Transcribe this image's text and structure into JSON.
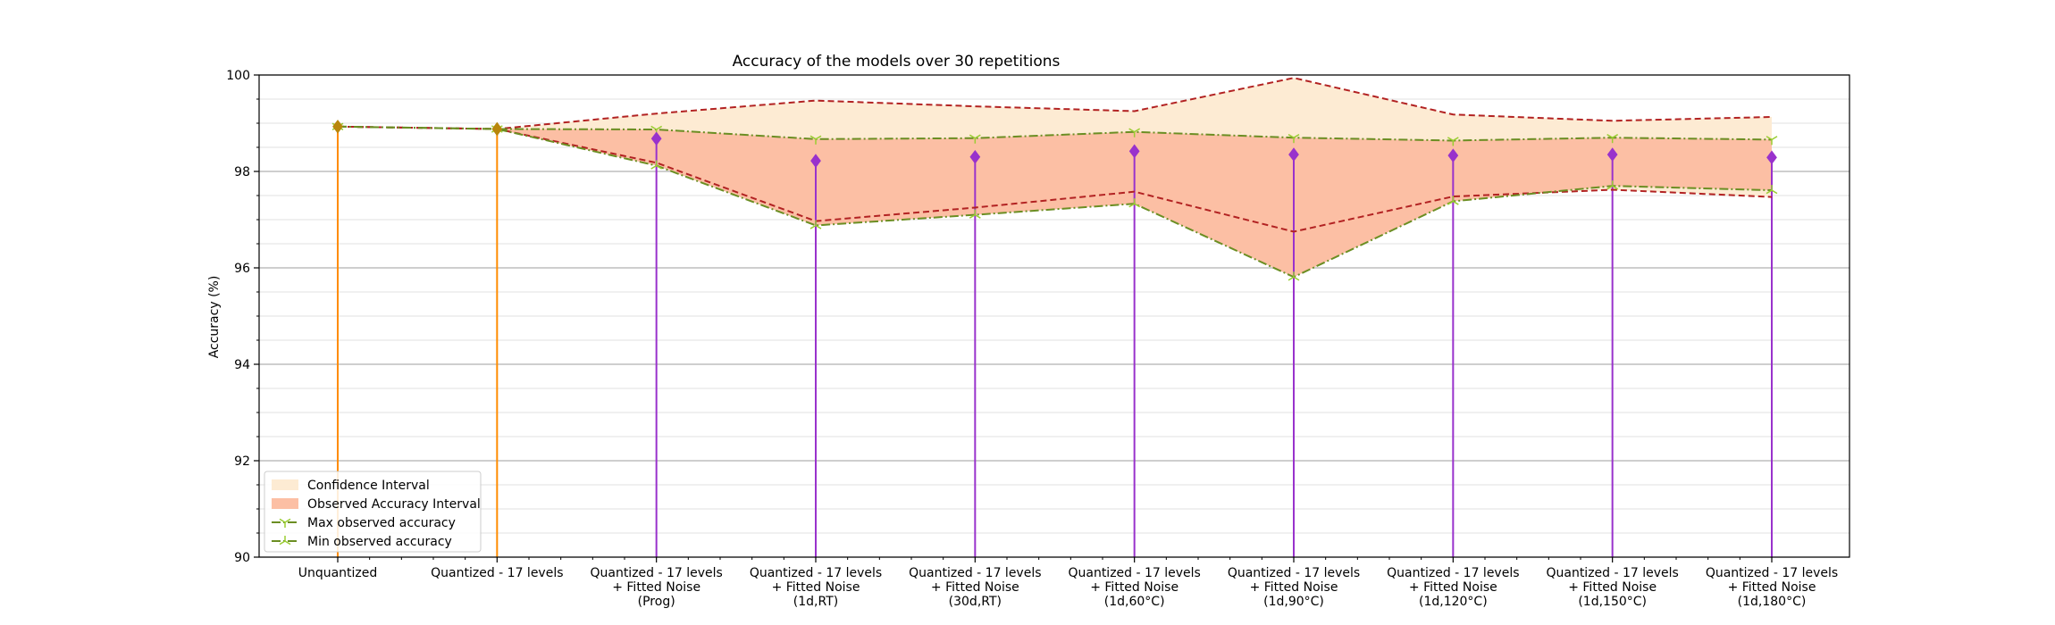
{
  "chart_data": {
    "type": "line",
    "title": "Accuracy of the models over 30 repetitions",
    "xlabel": "",
    "ylabel": "Accuracy (%)",
    "ylim": [
      90,
      100
    ],
    "yticks": [
      "90",
      "92",
      "94",
      "96",
      "98",
      "100"
    ],
    "categories": [
      [
        "Unquantized"
      ],
      [
        "Quantized - 17 levels"
      ],
      [
        "Quantized - 17 levels",
        "+ Fitted Noise",
        "(Prog)"
      ],
      [
        "Quantized - 17 levels",
        "+ Fitted Noise",
        "(1d,RT)"
      ],
      [
        "Quantized - 17 levels",
        "+ Fitted Noise",
        "(30d,RT)"
      ],
      [
        "Quantized - 17 levels",
        "+ Fitted Noise",
        "(1d,60°C)"
      ],
      [
        "Quantized - 17 levels",
        "+ Fitted Noise",
        "(1d,90°C)"
      ],
      [
        "Quantized - 17 levels",
        "+ Fitted Noise",
        "(1d,120°C)"
      ],
      [
        "Quantized - 17 levels",
        "+ Fitted Noise",
        "(1d,150°C)"
      ],
      [
        "Quantized - 17 levels",
        "+ Fitted Noise",
        "(1d,180°C)"
      ]
    ],
    "mean_accuracy": [
      98.93,
      98.88,
      98.68,
      98.22,
      98.3,
      98.42,
      98.35,
      98.33,
      98.35,
      98.29
    ],
    "stem_colors": [
      "#ff8c00",
      "#ff8c00",
      "#9932cc",
      "#9932cc",
      "#9932cc",
      "#9932cc",
      "#9932cc",
      "#9932cc",
      "#9932cc",
      "#9932cc"
    ],
    "confidence_interval": {
      "upper": [
        98.93,
        98.88,
        99.2,
        99.47,
        99.35,
        99.25,
        99.94,
        99.18,
        99.05,
        99.13
      ],
      "lower": [
        98.93,
        98.88,
        98.18,
        96.97,
        97.25,
        97.58,
        96.75,
        97.48,
        97.62,
        97.47
      ]
    },
    "max_observed": [
      98.93,
      98.88,
      98.87,
      98.67,
      98.69,
      98.82,
      98.7,
      98.64,
      98.7,
      98.66
    ],
    "min_observed": [
      98.93,
      98.88,
      98.12,
      96.88,
      97.1,
      97.33,
      95.81,
      97.38,
      97.7,
      97.61
    ],
    "legend": {
      "position": "lower-left",
      "entries": [
        "Confidence Interval",
        "Observed Accuracy Interval",
        "Max observed accuracy",
        "Min observed accuracy"
      ]
    },
    "colors": {
      "confidence_fill": "#fdebd3",
      "observed_fill": "#fcbfa4",
      "ci_line": "#b22222",
      "observed_line": "#6b8e23",
      "marker": "#9932cc"
    },
    "grid": "y"
  }
}
